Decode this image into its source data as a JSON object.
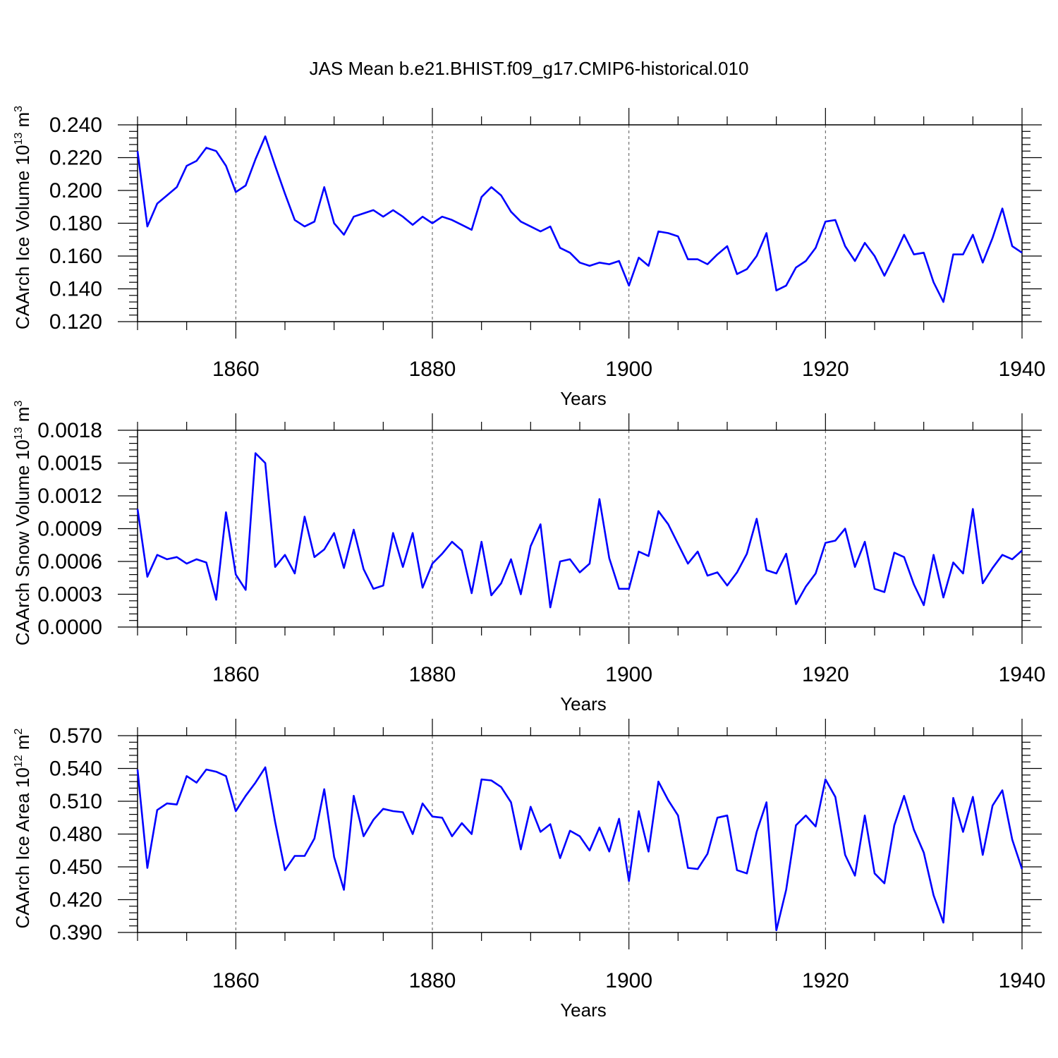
{
  "title": "JAS Mean b.e21.BHIST.f09_g17.CMIP6-historical.010",
  "colors": {
    "line": "#0000ff",
    "axis": "#000000",
    "grid": "#555555"
  },
  "chart_data": [
    {
      "type": "line",
      "name": "ice-volume",
      "ylabel": "CAArch Ice Volume 10",
      "ylabel_exp": "13",
      "ylabel_unit": " m",
      "ylabel_unit_exp": "3",
      "xlabel": "Years",
      "xlim": [
        1850,
        1940
      ],
      "ylim": [
        0.12,
        0.24
      ],
      "xticks": [
        1860,
        1880,
        1900,
        1920,
        1940
      ],
      "xtick_labels": [
        "1860",
        "1880",
        "1900",
        "1920",
        "1940"
      ],
      "yticks": [
        0.12,
        0.14,
        0.16,
        0.18,
        0.2,
        0.22,
        0.24
      ],
      "ytick_labels": [
        "0.120",
        "0.140",
        "0.160",
        "0.180",
        "0.200",
        "0.220",
        "0.240"
      ],
      "grid_x": [
        1860,
        1880,
        1900,
        1920
      ],
      "x_start": 1850,
      "values": [
        0.224,
        0.178,
        0.192,
        0.197,
        0.202,
        0.215,
        0.218,
        0.226,
        0.224,
        0.215,
        0.199,
        0.203,
        0.219,
        0.233,
        0.215,
        0.198,
        0.182,
        0.178,
        0.181,
        0.202,
        0.18,
        0.173,
        0.184,
        0.186,
        0.188,
        0.184,
        0.188,
        0.184,
        0.179,
        0.184,
        0.18,
        0.184,
        0.182,
        0.179,
        0.176,
        0.196,
        0.202,
        0.197,
        0.187,
        0.181,
        0.178,
        0.175,
        0.178,
        0.165,
        0.162,
        0.156,
        0.154,
        0.156,
        0.155,
        0.157,
        0.142,
        0.159,
        0.154,
        0.175,
        0.174,
        0.172,
        0.158,
        0.158,
        0.155,
        0.161,
        0.166,
        0.149,
        0.152,
        0.16,
        0.174,
        0.139,
        0.142,
        0.153,
        0.157,
        0.165,
        0.181,
        0.182,
        0.166,
        0.157,
        0.168,
        0.16,
        0.148,
        0.16,
        0.173,
        0.161,
        0.162,
        0.144,
        0.132,
        0.161,
        0.161,
        0.173,
        0.156,
        0.171,
        0.189,
        0.166,
        0.162
      ]
    },
    {
      "type": "line",
      "name": "snow-volume",
      "ylabel": "CAArch Snow Volume 10",
      "ylabel_exp": "13",
      "ylabel_unit": " m",
      "ylabel_unit_exp": "3",
      "xlabel": "Years",
      "xlim": [
        1850,
        1940
      ],
      "ylim": [
        0.0,
        0.0018
      ],
      "xticks": [
        1860,
        1880,
        1900,
        1920,
        1940
      ],
      "xtick_labels": [
        "1860",
        "1880",
        "1900",
        "1920",
        "1940"
      ],
      "yticks": [
        0.0,
        0.0003,
        0.0006,
        0.0009,
        0.0012,
        0.0015,
        0.0018
      ],
      "ytick_labels": [
        "0.0000",
        "0.0003",
        "0.0006",
        "0.0009",
        "0.0012",
        "0.0015",
        "0.0018"
      ],
      "grid_x": [
        1860,
        1880,
        1900,
        1920
      ],
      "x_start": 1850,
      "values": [
        0.00108,
        0.00046,
        0.00066,
        0.00062,
        0.00064,
        0.00058,
        0.00062,
        0.00059,
        0.00025,
        0.00105,
        0.00048,
        0.00034,
        0.00159,
        0.0015,
        0.00055,
        0.00066,
        0.00049,
        0.00101,
        0.00064,
        0.00071,
        0.00086,
        0.00054,
        0.00089,
        0.00053,
        0.00035,
        0.00038,
        0.00086,
        0.00055,
        0.00086,
        0.00036,
        0.00058,
        0.00067,
        0.00078,
        0.0007,
        0.00031,
        0.00078,
        0.00029,
        0.0004,
        0.00062,
        0.0003,
        0.00074,
        0.00094,
        0.00018,
        0.0006,
        0.00062,
        0.0005,
        0.00058,
        0.00117,
        0.00063,
        0.00035,
        0.00035,
        0.00069,
        0.00065,
        0.00106,
        0.00094,
        0.00076,
        0.00058,
        0.00069,
        0.00047,
        0.0005,
        0.00038,
        0.0005,
        0.00067,
        0.00099,
        0.00052,
        0.00049,
        0.00067,
        0.00021,
        0.00037,
        0.00049,
        0.00077,
        0.00079,
        0.0009,
        0.00055,
        0.00078,
        0.00035,
        0.00032,
        0.00068,
        0.00064,
        0.00039,
        0.0002,
        0.00066,
        0.00027,
        0.00059,
        0.00049,
        0.00108,
        0.0004,
        0.00054,
        0.00066,
        0.00062,
        0.0007
      ]
    },
    {
      "type": "line",
      "name": "ice-area",
      "ylabel": "CAArch Ice Area 10",
      "ylabel_exp": "12",
      "ylabel_unit": " m",
      "ylabel_unit_exp": "2",
      "xlabel": "Years",
      "xlim": [
        1850,
        1940
      ],
      "ylim": [
        0.39,
        0.57
      ],
      "xticks": [
        1860,
        1880,
        1900,
        1920,
        1940
      ],
      "xtick_labels": [
        "1860",
        "1880",
        "1900",
        "1920",
        "1940"
      ],
      "yticks": [
        0.39,
        0.42,
        0.45,
        0.48,
        0.51,
        0.54,
        0.57
      ],
      "ytick_labels": [
        "0.390",
        "0.420",
        "0.450",
        "0.480",
        "0.510",
        "0.540",
        "0.570"
      ],
      "grid_x": [
        1860,
        1880,
        1900,
        1920
      ],
      "x_start": 1850,
      "values": [
        0.539,
        0.449,
        0.502,
        0.508,
        0.507,
        0.533,
        0.527,
        0.539,
        0.537,
        0.533,
        0.501,
        0.515,
        0.527,
        0.541,
        0.491,
        0.447,
        0.46,
        0.46,
        0.476,
        0.521,
        0.459,
        0.429,
        0.515,
        0.478,
        0.493,
        0.503,
        0.501,
        0.5,
        0.48,
        0.508,
        0.496,
        0.495,
        0.478,
        0.49,
        0.48,
        0.53,
        0.529,
        0.523,
        0.509,
        0.466,
        0.505,
        0.482,
        0.489,
        0.458,
        0.483,
        0.478,
        0.465,
        0.486,
        0.464,
        0.494,
        0.437,
        0.501,
        0.464,
        0.528,
        0.511,
        0.497,
        0.449,
        0.448,
        0.462,
        0.495,
        0.497,
        0.447,
        0.444,
        0.482,
        0.509,
        0.392,
        0.429,
        0.488,
        0.497,
        0.487,
        0.53,
        0.514,
        0.461,
        0.442,
        0.497,
        0.444,
        0.435,
        0.488,
        0.515,
        0.484,
        0.463,
        0.424,
        0.399,
        0.513,
        0.482,
        0.514,
        0.461,
        0.506,
        0.52,
        0.475,
        0.448
      ]
    }
  ]
}
